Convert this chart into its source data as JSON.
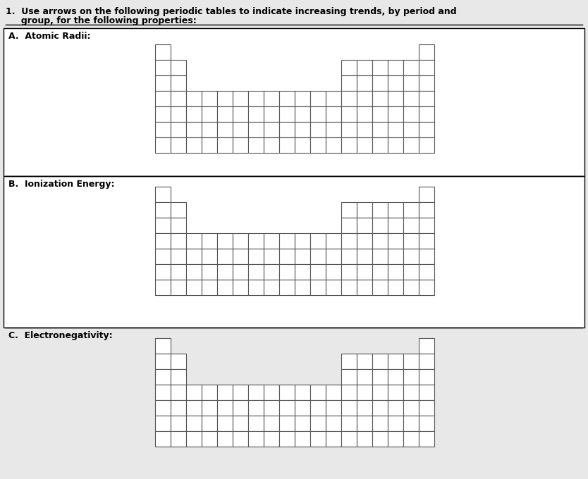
{
  "title_line1": "1.  Use arrows on the following periodic tables to indicate increasing trends, by period and",
  "title_line2": "     group, for the following properties:",
  "section_labels": [
    "A.  Atomic Radii:",
    "B.  Ionization Energy:",
    "C.  Electronegativity:"
  ],
  "bg_color": "#e8e8e8",
  "cell_color": "white",
  "grid_color": "#555555",
  "cell_size": 22,
  "figure_width": 8.34,
  "figure_height": 6.8,
  "dpi": 100
}
